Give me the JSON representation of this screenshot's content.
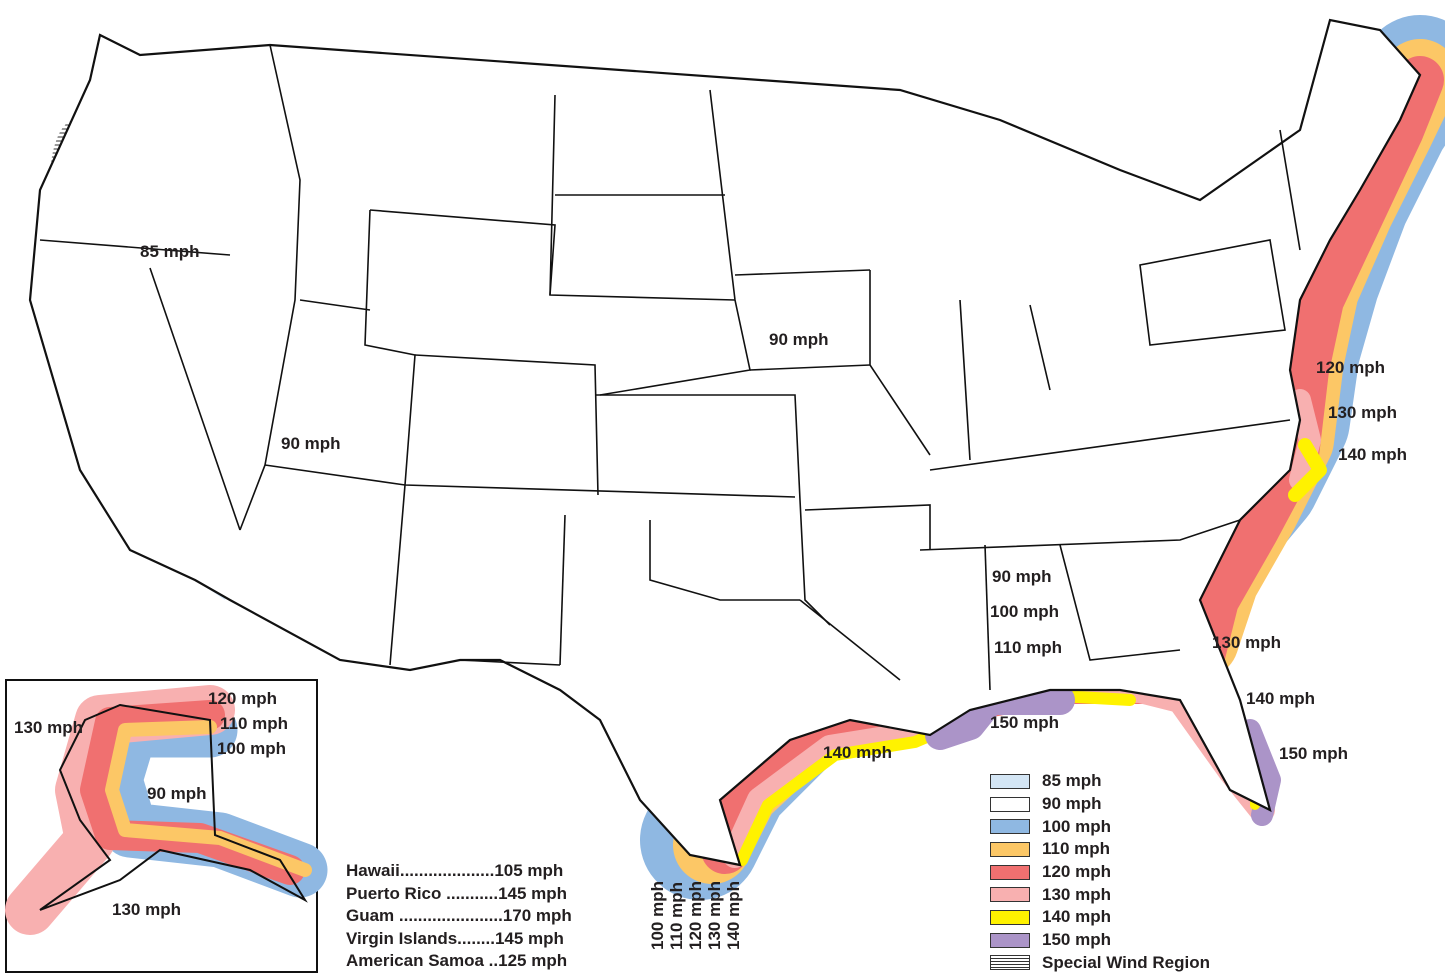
{
  "colors": {
    "85 mph": "#d4e6f5",
    "90 mph": "#ffffff",
    "100 mph": "#8fb8e2",
    "110 mph": "#fcc766",
    "120 mph": "#f07070",
    "130 mph": "#f8b0b0",
    "140 mph": "#fff200",
    "150 mph": "#ab94c8"
  },
  "map_labels": {
    "west": "85 mph",
    "southwest": "90 mph",
    "midwest": "90 mph",
    "mid_atlantic_120": "120 mph",
    "nc_130": "130 mph",
    "nc_140": "140 mph",
    "alabama_90": "90 mph",
    "gulf_100": "100 mph",
    "gulf_110": "110 mph",
    "gulf_150": "150 mph",
    "gulf_140": "140 mph",
    "florida_130": "130 mph",
    "florida_140": "140 mph",
    "florida_150": "150 mph"
  },
  "texas_labels": [
    "100 mph",
    "110 mph",
    "120 mph",
    "130 mph",
    "140 mph"
  ],
  "alaska": {
    "labels": {
      "l120": "120 mph",
      "l110": "110 mph",
      "l100": "100 mph",
      "l130_west": "130 mph",
      "l90": "90 mph",
      "l130_south": "130 mph"
    }
  },
  "territories": [
    {
      "name": "Hawaii",
      "dots": "....................",
      "speed": "105 mph"
    },
    {
      "name": "Puerto Rico",
      "dots": " ...........",
      "speed": "145 mph"
    },
    {
      "name": "Guam",
      "dots": " ......................",
      "speed": "170 mph"
    },
    {
      "name": "Virgin Islands",
      "dots": "........",
      "speed": "145 mph"
    },
    {
      "name": "American Samoa",
      "dots": " ..",
      "speed": "125 mph"
    }
  ],
  "legend": [
    {
      "label": "85 mph",
      "color": "#d4e6f5"
    },
    {
      "label": "90 mph",
      "color": "#ffffff"
    },
    {
      "label": "100 mph",
      "color": "#8fb8e2"
    },
    {
      "label": "110 mph",
      "color": "#fcc766"
    },
    {
      "label": "120 mph",
      "color": "#f07070"
    },
    {
      "label": "130 mph",
      "color": "#f8b0b0"
    },
    {
      "label": "140 mph",
      "color": "#fff200"
    },
    {
      "label": "150 mph",
      "color": "#ab94c8"
    },
    {
      "label": "Special Wind Region",
      "pattern": "hatch"
    }
  ]
}
